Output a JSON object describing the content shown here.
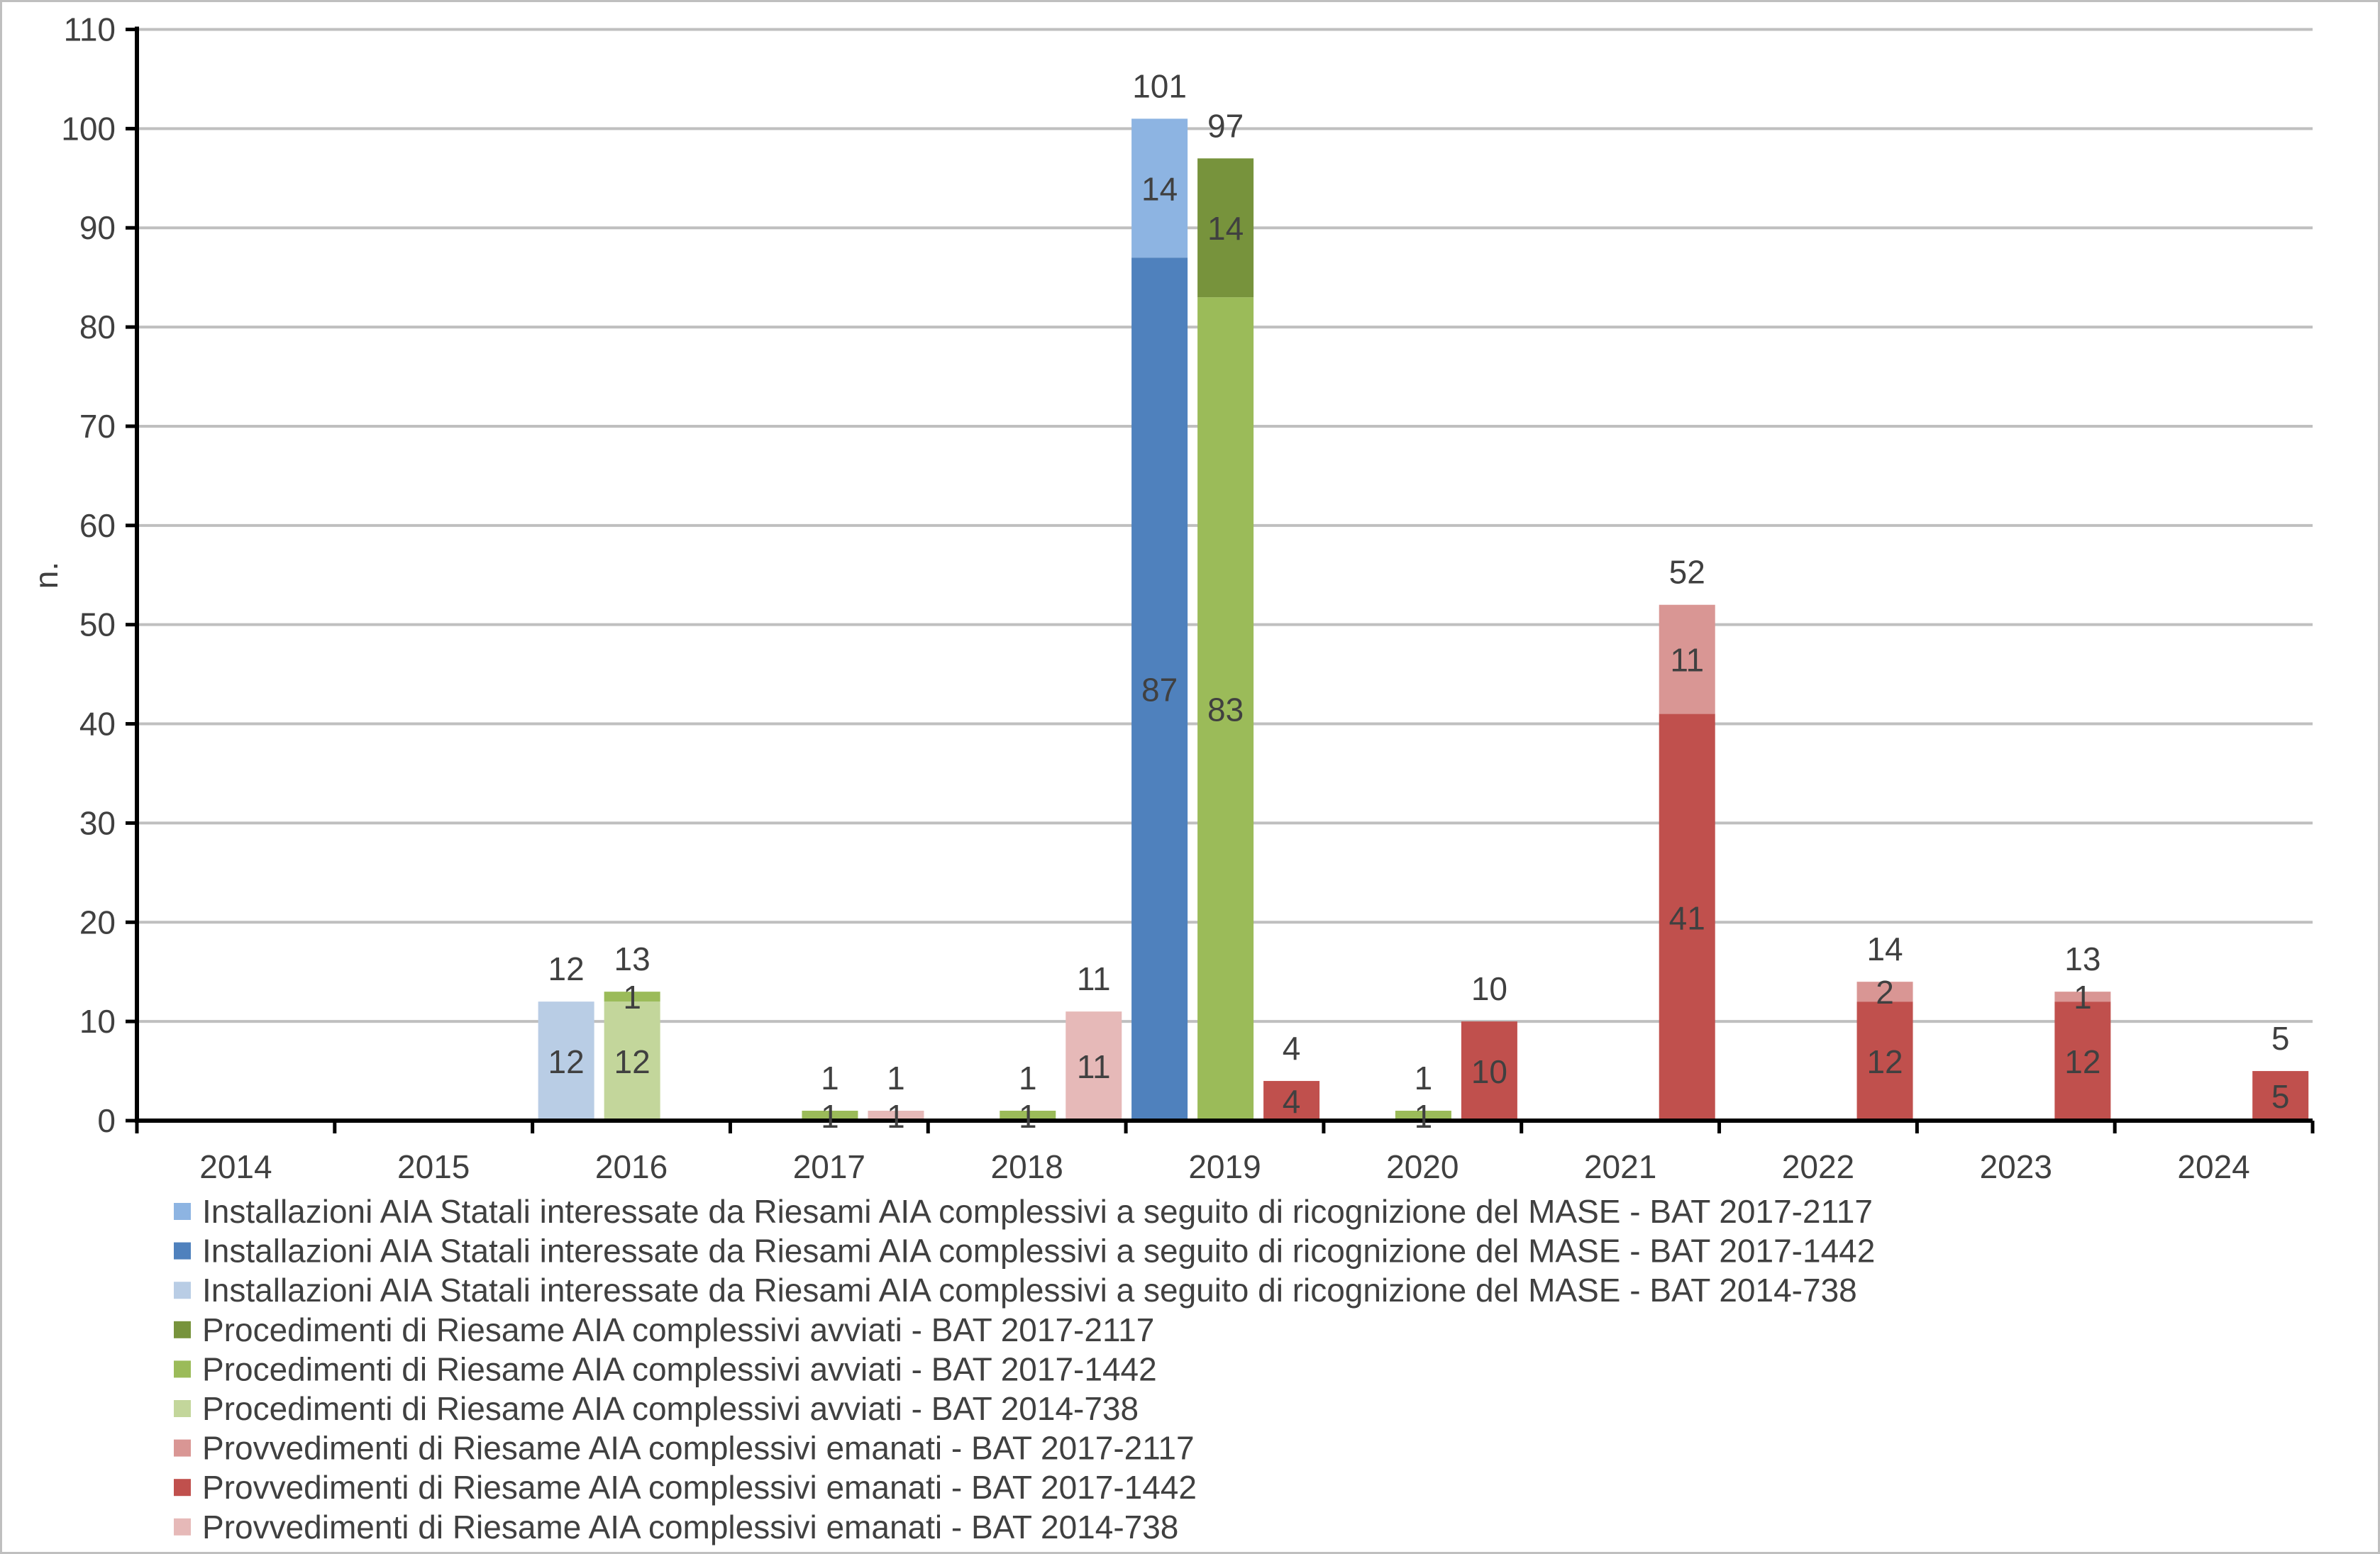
{
  "chart_data": {
    "type": "bar",
    "stacked": true,
    "title": "",
    "xlabel": "",
    "ylabel": "n.",
    "ylim": [
      0,
      110
    ],
    "yticks": [
      0,
      10,
      20,
      30,
      40,
      50,
      60,
      70,
      80,
      90,
      100,
      110
    ],
    "grid": true,
    "legend_position": "bottom",
    "categories": [
      "2014",
      "2015",
      "2016",
      "2017",
      "2018",
      "2019",
      "2020",
      "2021",
      "2022",
      "2023",
      "2024"
    ],
    "series": [
      {
        "name": "Installazioni AIA Statali interessate da Riesami AIA complessivi a seguito di ricognizione del MASE - BAT 2017-2117",
        "group": 0,
        "color": "#8DB4E2",
        "values": [
          null,
          null,
          null,
          null,
          null,
          14,
          null,
          null,
          null,
          null,
          null
        ]
      },
      {
        "name": "Installazioni AIA Statali interessate da Riesami AIA complessivi a seguito di ricognizione del MASE - BAT 2017-1442",
        "group": 0,
        "color": "#4F81BD",
        "values": [
          null,
          null,
          null,
          null,
          null,
          87,
          null,
          null,
          null,
          null,
          null
        ]
      },
      {
        "name": "Installazioni AIA Statali interessate da Riesami AIA complessivi a seguito di ricognizione del MASE - BAT 2014-738",
        "group": 0,
        "color": "#B9CDE5",
        "values": [
          null,
          null,
          12,
          null,
          null,
          null,
          null,
          null,
          null,
          null,
          null
        ]
      },
      {
        "name": "Procedimenti di Riesame AIA complessivi avviati - BAT 2017-2117",
        "group": 1,
        "color": "#77933C",
        "values": [
          null,
          null,
          null,
          null,
          null,
          14,
          null,
          null,
          null,
          null,
          null
        ]
      },
      {
        "name": "Procedimenti di Riesame AIA complessivi avviati - BAT 2017-1442",
        "group": 1,
        "color": "#9BBB59",
        "values": [
          null,
          null,
          1,
          1,
          1,
          83,
          1,
          null,
          null,
          null,
          null
        ]
      },
      {
        "name": "Procedimenti di Riesame AIA complessivi avviati - BAT 2014-738",
        "group": 1,
        "color": "#C3D69B",
        "values": [
          null,
          null,
          12,
          null,
          null,
          null,
          null,
          null,
          null,
          null,
          null
        ]
      },
      {
        "name": "Provvedimenti di Riesame AIA complessivi emanati - BAT 2017-2117",
        "group": 2,
        "color": "#D99694",
        "values": [
          null,
          null,
          null,
          null,
          null,
          null,
          null,
          11,
          2,
          1,
          null
        ]
      },
      {
        "name": "Provvedimenti di Riesame AIA complessivi emanati - BAT 2017-1442",
        "group": 2,
        "color": "#C0504D",
        "values": [
          null,
          null,
          null,
          null,
          null,
          4,
          10,
          41,
          12,
          12,
          5
        ]
      },
      {
        "name": "Provvedimenti di Riesame AIA complessivi emanati - BAT 2014-738",
        "group": 2,
        "color": "#E6B9B8",
        "values": [
          null,
          null,
          null,
          1,
          11,
          null,
          null,
          null,
          null,
          null,
          null
        ]
      }
    ],
    "stack_order": [
      2,
      1,
      0,
      5,
      4,
      3,
      8,
      7,
      6
    ]
  }
}
